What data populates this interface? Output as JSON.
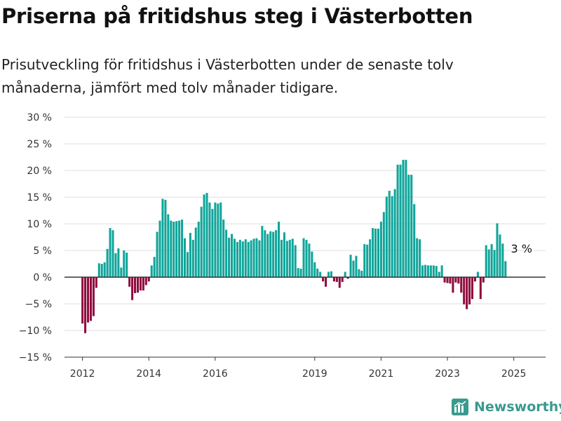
{
  "title": "Priserna på fritidshus steg i Västerbotten",
  "subtitle": "Prisutveckling för fritidshus i Västerbotten under de senaste tolv månaderna, jämfört med tolv månader tidigare.",
  "brand": {
    "name": "Newsworthy"
  },
  "colors": {
    "positive": "#0fa59a",
    "negative": "#8f0b3d",
    "grid": "#dddddd",
    "zero_line": "#333333",
    "brand": "#3a9a8e"
  },
  "chart_data": {
    "type": "bar",
    "title": "Priserna på fritidshus steg i Västerbotten",
    "subtitle": "Prisutveckling för fritidshus i Västerbotten under de senaste tolv månaderna, jämfört med tolv månader tidigare.",
    "xlabel": "",
    "ylabel": "",
    "ylim": [
      -15,
      30
    ],
    "xlim": [
      "2011-07",
      "2025-12"
    ],
    "y_ticks": [
      30,
      25,
      20,
      15,
      10,
      5,
      0,
      -5,
      -10,
      -15
    ],
    "y_tick_labels": [
      "30 %",
      "25 %",
      "20 %",
      "15 %",
      "10 %",
      "5 %",
      "0 %",
      "−5 %",
      "−10 %",
      "−15 %"
    ],
    "x_tick_labels": [
      "2012",
      "2014",
      "2016",
      "2019",
      "2021",
      "2023",
      "2025"
    ],
    "x_tick_positions": [
      "2012-01",
      "2014-01",
      "2016-01",
      "2019-01",
      "2021-01",
      "2023-01",
      "2025-01"
    ],
    "annotation": {
      "text": "3 %",
      "month": "2025-04"
    },
    "grid": true,
    "legend": "none",
    "series": [
      {
        "name": "",
        "start_month": "2012-01",
        "values": [
          -8.7,
          -10.5,
          -8.5,
          -8.2,
          -7.3,
          -2.0,
          2.6,
          2.5,
          2.8,
          5.3,
          9.2,
          8.8,
          4.5,
          5.4,
          1.8,
          5.0,
          4.6,
          -1.8,
          -4.3,
          -3.0,
          -2.9,
          -2.5,
          -2.5,
          -1.5,
          -0.8,
          2.2,
          3.8,
          8.5,
          10.6,
          14.7,
          14.5,
          11.8,
          10.6,
          10.4,
          10.5,
          10.6,
          10.8,
          7.3,
          4.7,
          8.3,
          7.0,
          9.3,
          10.4,
          13.2,
          15.5,
          15.8,
          14.0,
          12.8,
          14.0,
          13.8,
          14.0,
          10.8,
          8.9,
          7.4,
          8.1,
          7.2,
          6.6,
          7.0,
          6.7,
          7.1,
          6.6,
          6.9,
          7.2,
          7.3,
          6.9,
          9.6,
          8.8,
          8.1,
          8.6,
          8.5,
          8.8,
          10.4,
          7.0,
          8.4,
          6.8,
          7.0,
          7.2,
          6.0,
          1.7,
          1.6,
          7.3,
          7.0,
          6.3,
          4.8,
          2.8,
          1.6,
          1.0,
          -0.8,
          -1.8,
          1.0,
          1.1,
          -0.8,
          -0.9,
          -2.0,
          -0.9,
          1.0,
          -0.3,
          4.2,
          3.1,
          4.0,
          1.5,
          1.2,
          6.2,
          6.1,
          7.1,
          9.2,
          9.1,
          9.1,
          10.4,
          12.2,
          15.1,
          16.2,
          15.2,
          16.5,
          21.1,
          21.1,
          22.0,
          22.0,
          19.2,
          19.2,
          13.7,
          7.3,
          7.1,
          2.2,
          2.3,
          2.2,
          2.2,
          2.2,
          2.1,
          1.0,
          2.2,
          -1.0,
          -1.1,
          -1.2,
          -2.9,
          -1.0,
          -1.2,
          -2.9,
          -5.1,
          -6.0,
          -5.1,
          -4.1,
          -0.8,
          1.0,
          -4.1,
          -1.0,
          6.0,
          5.2,
          6.2,
          5.1,
          10.1,
          8.0,
          6.3,
          3.0
        ]
      }
    ]
  }
}
